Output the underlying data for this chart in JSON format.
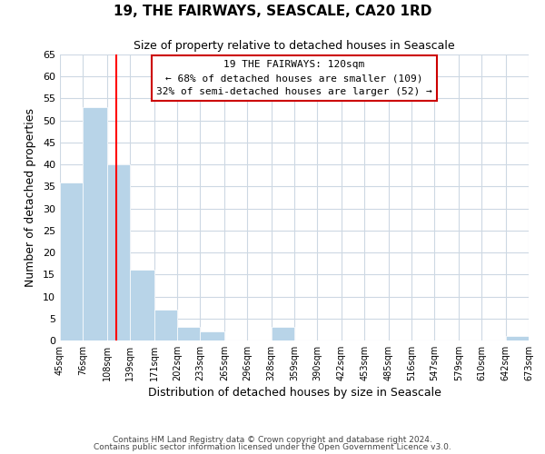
{
  "title": "19, THE FAIRWAYS, SEASCALE, CA20 1RD",
  "subtitle": "Size of property relative to detached houses in Seascale",
  "xlabel": "Distribution of detached houses by size in Seascale",
  "ylabel": "Number of detached properties",
  "bar_left_edges": [
    45,
    76,
    108,
    139,
    171,
    202,
    233,
    265,
    296,
    328,
    359,
    390,
    422,
    453,
    485,
    516,
    547,
    579,
    610,
    642
  ],
  "bar_heights": [
    36,
    53,
    40,
    16,
    7,
    3,
    2,
    0,
    0,
    3,
    0,
    0,
    0,
    0,
    0,
    0,
    0,
    0,
    0,
    1
  ],
  "bar_widths": [
    31,
    32,
    31,
    32,
    31,
    31,
    32,
    31,
    32,
    31,
    31,
    32,
    31,
    32,
    31,
    31,
    32,
    31,
    32,
    31
  ],
  "tick_labels": [
    "45sqm",
    "76sqm",
    "108sqm",
    "139sqm",
    "171sqm",
    "202sqm",
    "233sqm",
    "265sqm",
    "296sqm",
    "328sqm",
    "359sqm",
    "390sqm",
    "422sqm",
    "453sqm",
    "485sqm",
    "516sqm",
    "547sqm",
    "579sqm",
    "610sqm",
    "642sqm",
    "673sqm"
  ],
  "bar_color": "#b8d4e8",
  "property_line_x": 120,
  "property_line_color": "red",
  "annotation_box_text": "19 THE FAIRWAYS: 120sqm\n← 68% of detached houses are smaller (109)\n32% of semi-detached houses are larger (52) →",
  "ylim": [
    0,
    65
  ],
  "yticks": [
    0,
    5,
    10,
    15,
    20,
    25,
    30,
    35,
    40,
    45,
    50,
    55,
    60,
    65
  ],
  "footer_line1": "Contains HM Land Registry data © Crown copyright and database right 2024.",
  "footer_line2": "Contains public sector information licensed under the Open Government Licence v3.0.",
  "background_color": "#ffffff",
  "grid_color": "#cdd8e3"
}
